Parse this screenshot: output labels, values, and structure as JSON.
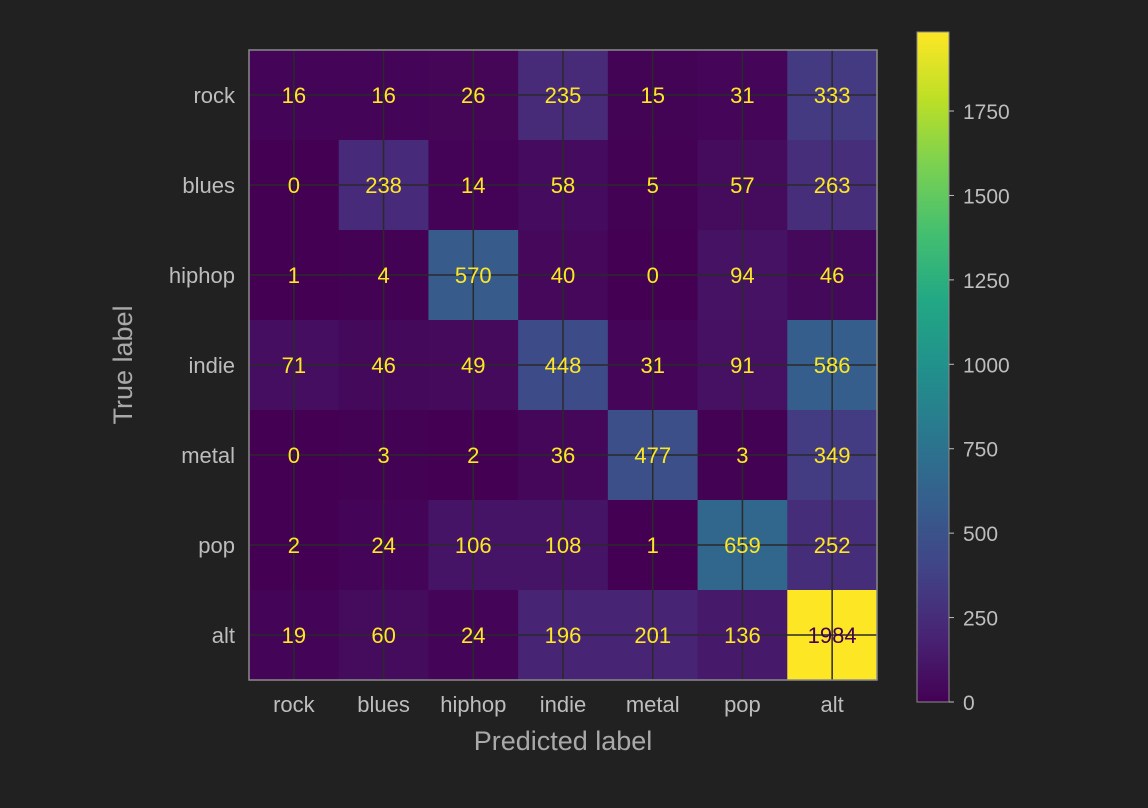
{
  "chart_data": {
    "type": "heatmap",
    "title": "",
    "xlabel": "Predicted label",
    "ylabel": "True label",
    "x_categories": [
      "rock",
      "blues",
      "hiphop",
      "indie",
      "metal",
      "pop",
      "alt"
    ],
    "y_categories": [
      "rock",
      "blues",
      "hiphop",
      "indie",
      "metal",
      "pop",
      "alt"
    ],
    "values": [
      [
        16,
        16,
        26,
        235,
        15,
        31,
        333
      ],
      [
        0,
        238,
        14,
        58,
        5,
        57,
        263
      ],
      [
        1,
        4,
        570,
        40,
        0,
        94,
        46
      ],
      [
        71,
        46,
        49,
        448,
        31,
        91,
        586
      ],
      [
        0,
        3,
        2,
        36,
        477,
        3,
        349
      ],
      [
        2,
        24,
        106,
        108,
        1,
        659,
        252
      ],
      [
        19,
        60,
        24,
        196,
        201,
        136,
        1984
      ]
    ],
    "colorbar": {
      "colormap": "viridis",
      "vmin": 0,
      "vmax": 1984,
      "ticks": [
        0,
        250,
        500,
        750,
        1000,
        1250,
        1500,
        1750
      ]
    },
    "grid": true,
    "colors": {
      "background": "#212121",
      "text_on_light": "#440154",
      "text_on_dark": "#fde725"
    }
  }
}
